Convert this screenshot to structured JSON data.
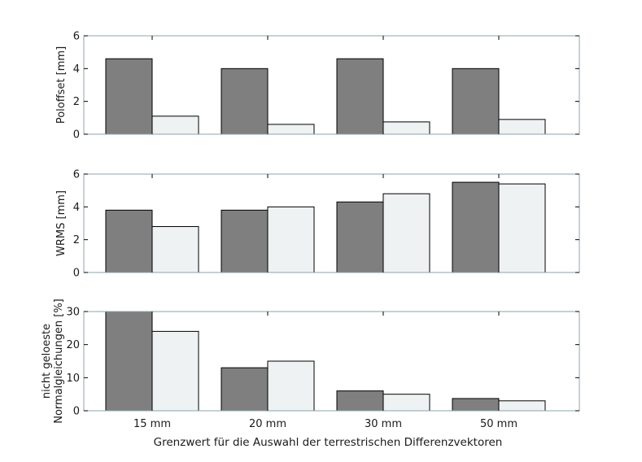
{
  "chart_data": [
    {
      "type": "bar",
      "categories": [
        "15 mm",
        "20 mm",
        "30 mm",
        "50 mm"
      ],
      "series": [
        {
          "values": [
            4.6,
            4.0,
            4.6,
            4.0
          ]
        },
        {
          "values": [
            1.1,
            0.6,
            0.75,
            0.9
          ]
        }
      ],
      "ylabel": "Poloffset [mm]",
      "ylim": [
        0,
        6
      ],
      "yticks": [
        0,
        2,
        4,
        6
      ],
      "show_category_labels": false
    },
    {
      "type": "bar",
      "categories": [
        "15 mm",
        "20 mm",
        "30 mm",
        "50 mm"
      ],
      "series": [
        {
          "values": [
            3.8,
            3.8,
            4.3,
            5.5
          ]
        },
        {
          "values": [
            2.8,
            4.0,
            4.8,
            5.4
          ]
        }
      ],
      "ylabel": "WRMS [mm]",
      "ylim": [
        0,
        6
      ],
      "yticks": [
        0,
        2,
        4,
        6
      ],
      "show_category_labels": false
    },
    {
      "type": "bar",
      "categories": [
        "15 mm",
        "20 mm",
        "30 mm",
        "50 mm"
      ],
      "series": [
        {
          "values": [
            30,
            13,
            6,
            3.7
          ]
        },
        {
          "values": [
            24,
            15,
            5,
            3
          ]
        }
      ],
      "ylabel": [
        "nicht geloeste",
        "Normalgleichungen [%]"
      ],
      "ylim": [
        0,
        30
      ],
      "yticks": [
        0,
        10,
        20,
        30
      ],
      "show_category_labels": true
    }
  ],
  "xlabel": "Grenzwert für die Auswahl der terrestrischen Differenzvektoren",
  "colors": {
    "series_dark": "#7f7f7f",
    "series_light": "#eef2f3",
    "bar_stroke": "#000000",
    "axis_box": "#8fa3ad",
    "tick_color": "#000000"
  }
}
